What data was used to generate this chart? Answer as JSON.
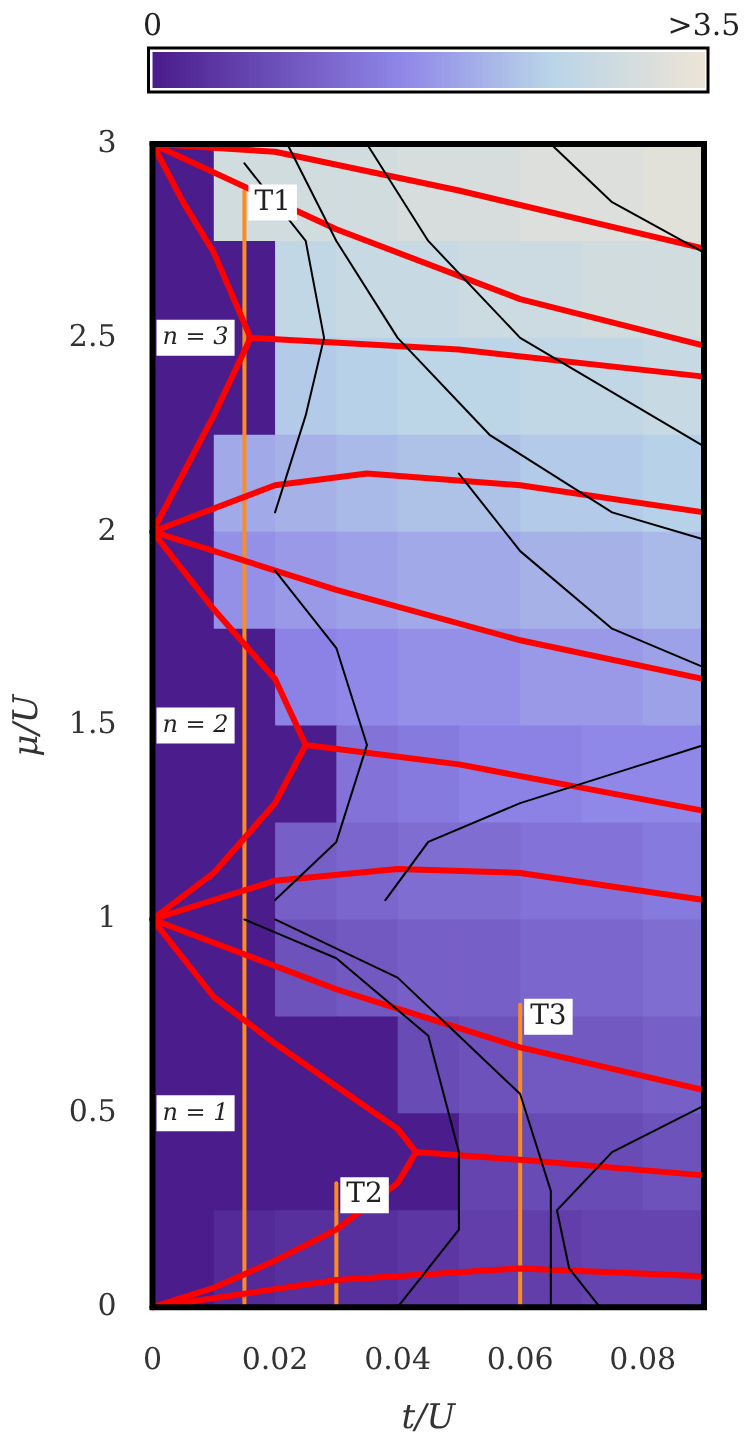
{
  "chart_data": {
    "type": "heatmap",
    "xlabel": "t/U",
    "ylabel": "μ/U",
    "xlim": [
      0,
      0.09
    ],
    "ylim": [
      0,
      3
    ],
    "xticks": [
      0,
      0.02,
      0.04,
      0.06,
      0.08
    ],
    "yticks": [
      0,
      0.5,
      1,
      1.5,
      2,
      2.5,
      3
    ],
    "clim": [
      0,
      3.5
    ],
    "cticks": [
      0,
      {
        "value": 3.5,
        "label": ">3.5"
      }
    ],
    "cells": [
      [
        0,
        3.0,
        3.0,
        3.0,
        3.1,
        3.1,
        3.2,
        3.2,
        3.3
      ],
      [
        0,
        0,
        2.7,
        2.8,
        2.8,
        2.9,
        2.9,
        3.0,
        3.0
      ],
      [
        0,
        0,
        2.4,
        2.5,
        2.6,
        2.6,
        2.7,
        2.7,
        2.8
      ],
      [
        0,
        2.0,
        2.1,
        2.2,
        2.3,
        2.3,
        2.4,
        2.4,
        2.5
      ],
      [
        0,
        1.7,
        1.8,
        1.9,
        2.0,
        2.0,
        2.1,
        2.1,
        2.2
      ],
      [
        0,
        0,
        1.5,
        1.6,
        1.7,
        1.7,
        1.8,
        1.8,
        1.9
      ],
      [
        0,
        0,
        0,
        1.3,
        1.4,
        1.5,
        1.5,
        1.6,
        1.6
      ],
      [
        0,
        0,
        1.0,
        1.1,
        1.2,
        1.2,
        1.3,
        1.3,
        1.4
      ],
      [
        0,
        0,
        0.8,
        0.9,
        1.0,
        1.0,
        1.1,
        1.1,
        1.2
      ],
      [
        0,
        0,
        0,
        0,
        0.7,
        0.8,
        0.9,
        0.9,
        1.0
      ],
      [
        0,
        0,
        0,
        0,
        0,
        0.6,
        0.7,
        0.7,
        0.8
      ],
      [
        0,
        0.2,
        0.3,
        0.3,
        0.4,
        0.5,
        0.5,
        0.6,
        0.6
      ]
    ],
    "annotations": [
      "n = 3",
      "n = 2",
      "n = 1"
    ],
    "legend": false,
    "grid": false,
    "series": [
      {
        "type": "line",
        "color": "#000000",
        "x": [
          0.022,
          0.03,
          0.04,
          0.055,
          0.075,
          0.09
        ],
        "values": [
          3,
          2.75,
          2.5,
          2.25,
          2.05,
          1.98
        ]
      },
      {
        "type": "line",
        "color": "#000000",
        "x": [
          0.035,
          0.045,
          0.06,
          0.09
        ],
        "values": [
          3,
          2.75,
          2.5,
          2.22
        ]
      },
      {
        "type": "line",
        "color": "#000000",
        "x": [
          0.065,
          0.075,
          0.09
        ],
        "values": [
          3,
          2.85,
          2.72
        ]
      },
      {
        "type": "line",
        "color": "#000000",
        "x": [
          0.05,
          0.06,
          0.075,
          0.09
        ],
        "values": [
          2.15,
          1.95,
          1.75,
          1.65
        ]
      },
      {
        "type": "line",
        "color": "#000000",
        "x": [
          0.038,
          0.045,
          0.06,
          0.08,
          0.09
        ],
        "values": [
          1.05,
          1.2,
          1.3,
          1.4,
          1.45
        ]
      },
      {
        "type": "line",
        "color": "#000000",
        "x": [
          0.04,
          0.05,
          0.05,
          0.045,
          0.03,
          0.015
        ],
        "values": [
          0,
          0.2,
          0.4,
          0.7,
          0.9,
          1
        ]
      },
      {
        "type": "line",
        "color": "#000000",
        "x": [
          0.065,
          0.065,
          0.06,
          0.04,
          0.02
        ],
        "values": [
          0,
          0.3,
          0.55,
          0.85,
          1
        ]
      },
      {
        "type": "line",
        "color": "#000000",
        "x": [
          0.073,
          0.068,
          0.066,
          0.075,
          0.09
        ],
        "values": [
          0,
          0.1,
          0.25,
          0.4,
          0.52
        ]
      },
      {
        "type": "line",
        "color": "#000000",
        "x": [
          0.02,
          0.03,
          0.035,
          0.03,
          0.02
        ],
        "values": [
          1.05,
          1.2,
          1.45,
          1.7,
          1.9
        ]
      },
      {
        "type": "line",
        "color": "#000000",
        "x": [
          0.02,
          0.025,
          0.028,
          0.025,
          0.015
        ],
        "values": [
          2.05,
          2.3,
          2.5,
          2.75,
          2.95
        ]
      },
      {
        "type": "line",
        "color": "#ff0000",
        "x": [
          0,
          0.01,
          0.02,
          0.03,
          0.04,
          0.043,
          0.04,
          0.03,
          0.02,
          0.01,
          0
        ],
        "values": [
          1,
          0.8,
          0.68,
          0.57,
          0.46,
          0.4,
          0.32,
          0.2,
          0.12,
          0.05,
          0
        ]
      },
      {
        "type": "line",
        "color": "#ff0000",
        "x": [
          0,
          0.01,
          0.02,
          0.025,
          0.02,
          0.01,
          0
        ],
        "values": [
          2,
          1.8,
          1.62,
          1.45,
          1.3,
          1.12,
          1
        ]
      },
      {
        "type": "line",
        "color": "#ff0000",
        "x": [
          0,
          0.005,
          0.01,
          0.016,
          0.01,
          0.005,
          0
        ],
        "values": [
          3,
          2.85,
          2.72,
          2.5,
          2.3,
          2.15,
          2
        ]
      },
      {
        "type": "line",
        "color": "#ff0000",
        "x": [
          0.043,
          0.06,
          0.09
        ],
        "values": [
          0.4,
          0.38,
          0.34
        ]
      },
      {
        "type": "line",
        "color": "#ff0000",
        "x": [
          0,
          0.03,
          0.06,
          0.09
        ],
        "values": [
          0,
          0.07,
          0.1,
          0.08
        ]
      },
      {
        "type": "line",
        "color": "#ff0000",
        "x": [
          0,
          0.03,
          0.06,
          0.09
        ],
        "values": [
          1,
          0.82,
          0.67,
          0.56
        ]
      },
      {
        "type": "line",
        "color": "#ff0000",
        "x": [
          0,
          0.02,
          0.04,
          0.06,
          0.09
        ],
        "values": [
          1,
          1.1,
          1.13,
          1.12,
          1.05
        ]
      },
      {
        "type": "line",
        "color": "#ff0000",
        "x": [
          0.025,
          0.05,
          0.09
        ],
        "values": [
          1.45,
          1.4,
          1.28
        ]
      },
      {
        "type": "line",
        "color": "#ff0000",
        "x": [
          0,
          0.03,
          0.06,
          0.09
        ],
        "values": [
          2,
          1.85,
          1.72,
          1.62
        ]
      },
      {
        "type": "line",
        "color": "#ff0000",
        "x": [
          0,
          0.02,
          0.035,
          0.06,
          0.09
        ],
        "values": [
          2,
          2.12,
          2.15,
          2.12,
          2.05
        ]
      },
      {
        "type": "line",
        "color": "#ff0000",
        "x": [
          0.016,
          0.05,
          0.09
        ],
        "values": [
          2.5,
          2.47,
          2.4
        ]
      },
      {
        "type": "line",
        "color": "#ff0000",
        "x": [
          0,
          0.03,
          0.06,
          0.09
        ],
        "values": [
          3,
          2.78,
          2.6,
          2.48
        ]
      },
      {
        "type": "line",
        "color": "#ff0000",
        "x": [
          0,
          0.02,
          0.05,
          0.09
        ],
        "values": [
          3,
          2.98,
          2.88,
          2.73
        ]
      },
      {
        "name": "T1",
        "type": "line",
        "color": "#ff8c1a",
        "x": [
          0.015,
          0.015
        ],
        "values": [
          0,
          2.88
        ]
      },
      {
        "name": "T2",
        "type": "line",
        "color": "#ff8c1a",
        "x": [
          0.03,
          0.03
        ],
        "values": [
          0,
          0.32
        ]
      },
      {
        "name": "T3",
        "type": "line",
        "color": "#ff8c1a",
        "x": [
          0.06,
          0.06
        ],
        "values": [
          0,
          0.78
        ]
      }
    ]
  }
}
